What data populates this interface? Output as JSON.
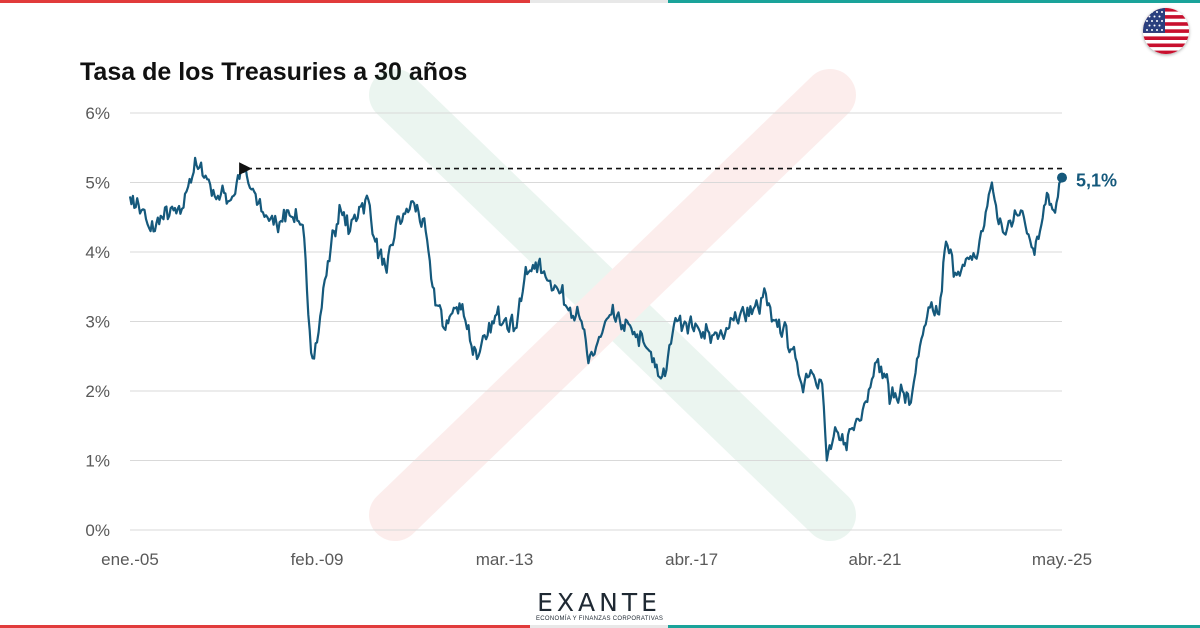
{
  "colors": {
    "line": "#15597c",
    "grid": "#d9d9d9",
    "tick_text": "#595959",
    "watermark_green": "#2e9a62",
    "watermark_red": "#e8473b",
    "bar_red": "#e13b3b",
    "bar_grey": "#e8e8e8",
    "bar_teal": "#1aa39a"
  },
  "header": {
    "flag_icon": "us-flag-icon"
  },
  "logo": {
    "name": "EXANTE",
    "tagline": "ECONOMÍA Y FINANZAS CORPORATIVAS"
  },
  "chart_data": {
    "type": "line",
    "title": "Tasa de los Treasuries a 30 años",
    "xlabel": "",
    "ylabel": "",
    "ylim": [
      0,
      6
    ],
    "y_ticks": [
      "0%",
      "1%",
      "2%",
      "3%",
      "4%",
      "5%",
      "6%"
    ],
    "x_ticks": [
      "ene.-05",
      "feb.-09",
      "mar.-13",
      "abr.-17",
      "abr.-21",
      "may.-25"
    ],
    "x_tick_years": [
      2005.0,
      2009.08,
      2013.17,
      2017.25,
      2021.25,
      2025.33
    ],
    "xlim": [
      2005.0,
      2025.33
    ],
    "grid": true,
    "series": [
      {
        "name": "Tasa de los Treasuries a 30 años",
        "points": [
          [
            2005.0,
            4.8
          ],
          [
            2005.25,
            4.6
          ],
          [
            2005.45,
            4.3
          ],
          [
            2005.7,
            4.5
          ],
          [
            2005.95,
            4.6
          ],
          [
            2006.1,
            4.55
          ],
          [
            2006.3,
            5.05
          ],
          [
            2006.45,
            5.25
          ],
          [
            2006.65,
            5.1
          ],
          [
            2006.85,
            4.8
          ],
          [
            2007.05,
            4.85
          ],
          [
            2007.2,
            4.75
          ],
          [
            2007.45,
            5.2
          ],
          [
            2007.65,
            4.9
          ],
          [
            2007.8,
            4.7
          ],
          [
            2008.0,
            4.5
          ],
          [
            2008.2,
            4.4
          ],
          [
            2008.45,
            4.6
          ],
          [
            2008.65,
            4.45
          ],
          [
            2008.8,
            4.2
          ],
          [
            2008.95,
            2.55
          ],
          [
            2009.08,
            2.7
          ],
          [
            2009.25,
            3.6
          ],
          [
            2009.45,
            4.3
          ],
          [
            2009.6,
            4.6
          ],
          [
            2009.8,
            4.3
          ],
          [
            2010.0,
            4.65
          ],
          [
            2010.2,
            4.75
          ],
          [
            2010.35,
            4.15
          ],
          [
            2010.6,
            3.7
          ],
          [
            2010.8,
            4.4
          ],
          [
            2011.0,
            4.55
          ],
          [
            2011.2,
            4.7
          ],
          [
            2011.45,
            4.3
          ],
          [
            2011.6,
            3.5
          ],
          [
            2011.85,
            2.9
          ],
          [
            2012.0,
            3.1
          ],
          [
            2012.25,
            3.25
          ],
          [
            2012.45,
            2.65
          ],
          [
            2012.6,
            2.5
          ],
          [
            2012.8,
            2.8
          ],
          [
            2013.0,
            3.1
          ],
          [
            2013.2,
            3.05
          ],
          [
            2013.4,
            2.9
          ],
          [
            2013.6,
            3.6
          ],
          [
            2013.85,
            3.85
          ],
          [
            2014.0,
            3.7
          ],
          [
            2014.3,
            3.5
          ],
          [
            2014.6,
            3.2
          ],
          [
            2014.85,
            3.0
          ],
          [
            2015.0,
            2.4
          ],
          [
            2015.2,
            2.7
          ],
          [
            2015.5,
            3.1
          ],
          [
            2015.75,
            2.95
          ],
          [
            2016.0,
            2.85
          ],
          [
            2016.3,
            2.6
          ],
          [
            2016.55,
            2.2
          ],
          [
            2016.7,
            2.3
          ],
          [
            2016.9,
            3.05
          ],
          [
            2017.1,
            3.0
          ],
          [
            2017.4,
            2.9
          ],
          [
            2017.7,
            2.8
          ],
          [
            2017.95,
            2.75
          ],
          [
            2018.1,
            3.05
          ],
          [
            2018.4,
            3.1
          ],
          [
            2018.7,
            3.2
          ],
          [
            2018.87,
            3.4
          ],
          [
            2019.0,
            3.0
          ],
          [
            2019.25,
            2.9
          ],
          [
            2019.45,
            2.6
          ],
          [
            2019.65,
            2.1
          ],
          [
            2019.85,
            2.3
          ],
          [
            2020.1,
            2.1
          ],
          [
            2020.2,
            1.0
          ],
          [
            2020.35,
            1.35
          ],
          [
            2020.6,
            1.25
          ],
          [
            2020.85,
            1.6
          ],
          [
            2021.05,
            1.85
          ],
          [
            2021.25,
            2.4
          ],
          [
            2021.45,
            2.25
          ],
          [
            2021.6,
            1.9
          ],
          [
            2021.85,
            2.0
          ],
          [
            2022.0,
            1.8
          ],
          [
            2022.2,
            2.5
          ],
          [
            2022.45,
            3.2
          ],
          [
            2022.65,
            3.1
          ],
          [
            2022.8,
            4.15
          ],
          [
            2023.0,
            3.7
          ],
          [
            2023.2,
            3.8
          ],
          [
            2023.5,
            4.0
          ],
          [
            2023.8,
            5.0
          ],
          [
            2023.95,
            4.4
          ],
          [
            2024.1,
            4.25
          ],
          [
            2024.3,
            4.6
          ],
          [
            2024.5,
            4.5
          ],
          [
            2024.7,
            4.05
          ],
          [
            2024.85,
            4.3
          ],
          [
            2025.0,
            4.85
          ],
          [
            2025.15,
            4.6
          ],
          [
            2025.33,
            5.07
          ]
        ]
      }
    ],
    "annotation": {
      "label": "5,1%",
      "x": 2025.33,
      "y": 5.07,
      "arrow_from_x": 2025.33,
      "arrow_to_x": 2007.45,
      "arrow_y": 5.2
    }
  }
}
